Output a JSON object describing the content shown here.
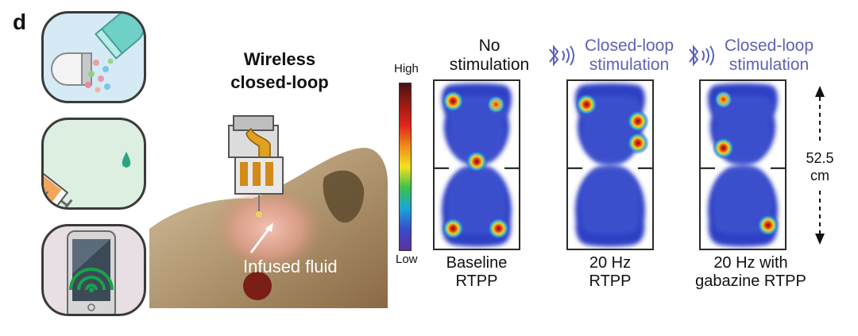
{
  "panel_letter": "d",
  "left_icons": [
    "pill-capsule-icon",
    "syringe-icon",
    "smartphone-wireless-icon"
  ],
  "device": {
    "title_line1": "Wireless",
    "title_line2": "closed-loop",
    "annotation": "Infused fluid"
  },
  "colorbar": {
    "high_label": "High",
    "low_label": "Low",
    "colors": [
      "#4a1216",
      "#9b1b14",
      "#e02418",
      "#f08a1c",
      "#f3e21d",
      "#3cc24a",
      "#1aa4d8",
      "#3a4bc8",
      "#5d2fa0"
    ]
  },
  "heatmaps": [
    {
      "top_line1": "No",
      "top_line2": "stimulation",
      "top_style": "plain",
      "bottom_line1": "Baseline",
      "bottom_line2": "RTPP",
      "hotspots": [
        {
          "fx": 0.22,
          "fy": 0.12,
          "level": "hot"
        },
        {
          "fx": 0.73,
          "fy": 0.14,
          "level": "warm"
        },
        {
          "fx": 0.5,
          "fy": 0.48,
          "level": "hot"
        },
        {
          "fx": 0.22,
          "fy": 0.88,
          "level": "hot"
        },
        {
          "fx": 0.76,
          "fy": 0.88,
          "level": "hot"
        }
      ]
    },
    {
      "top_line1": "Closed-loop",
      "top_line2": "stimulation",
      "top_style": "bluetooth",
      "bottom_line1": "20 Hz",
      "bottom_line2": "RTPP",
      "hotspots": [
        {
          "fx": 0.22,
          "fy": 0.14,
          "level": "hot"
        },
        {
          "fx": 0.83,
          "fy": 0.24,
          "level": "hot"
        },
        {
          "fx": 0.83,
          "fy": 0.37,
          "level": "hot"
        }
      ]
    },
    {
      "top_line1": "Closed-loop",
      "top_line2": "stimulation",
      "top_style": "bluetooth",
      "bottom_line1": "20 Hz with",
      "bottom_line2": "gabazine RTPP",
      "hotspots": [
        {
          "fx": 0.27,
          "fy": 0.11,
          "level": "warm"
        },
        {
          "fx": 0.27,
          "fy": 0.4,
          "level": "hot"
        },
        {
          "fx": 0.8,
          "fy": 0.86,
          "level": "hot"
        }
      ]
    }
  ],
  "scale": {
    "value": "52.5",
    "unit": "cm"
  }
}
